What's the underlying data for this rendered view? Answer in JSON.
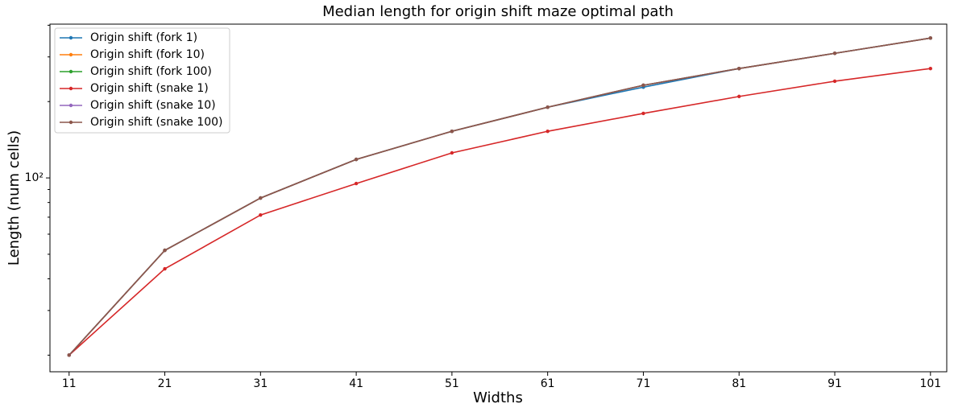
{
  "chart_data": {
    "type": "line",
    "title": "Median length for origin shift maze optimal path",
    "x_label": "Widths",
    "y_label": "Length (num cells)",
    "x": [
      11,
      21,
      31,
      41,
      51,
      61,
      71,
      81,
      91,
      101
    ],
    "series": [
      {
        "name": "Origin shift (fork 1)",
        "color": "#1f77b4",
        "values": [
          20,
          51.8,
          83.3,
          118.3,
          152.7,
          190,
          228,
          270,
          310,
          356
        ]
      },
      {
        "name": "Origin shift (fork 10)",
        "color": "#ff7f0e",
        "values": [
          20,
          51.8,
          83.3,
          118.3,
          152.7,
          190,
          231.9,
          270,
          310,
          356
        ]
      },
      {
        "name": "Origin shift (fork 100)",
        "color": "#2ca02c",
        "values": [
          20,
          51.8,
          83.3,
          118.3,
          152.7,
          190,
          231.9,
          270,
          310,
          356
        ]
      },
      {
        "name": "Origin shift (snake 1)",
        "color": "#d62728",
        "values": [
          20,
          43.8,
          71.4,
          95,
          125.5,
          152.7,
          179.6,
          209.5,
          240.6,
          270
        ]
      },
      {
        "name": "Origin shift (snake 10)",
        "color": "#9467bd",
        "values": [
          20,
          51.8,
          83.3,
          118.3,
          152.7,
          190,
          231.9,
          270,
          310,
          356
        ]
      },
      {
        "name": "Origin shift (snake 100)",
        "color": "#8c564b",
        "values": [
          20,
          51.8,
          83.3,
          118.3,
          152.7,
          190,
          231.9,
          270,
          310,
          356
        ]
      }
    ],
    "xlim": [
      9,
      102.7
    ],
    "xticks": [
      11,
      21,
      31,
      41,
      51,
      61,
      71,
      81,
      91,
      101
    ],
    "ylim": [
      17.2,
      404
    ],
    "y_log_scale": true,
    "yticks": [
      {
        "value": 100,
        "label": "10²"
      }
    ],
    "yticks_minor": [
      20,
      30,
      40,
      50,
      60,
      70,
      80,
      90,
      200,
      300,
      400
    ],
    "grid": false,
    "legend_position": "upper left"
  }
}
